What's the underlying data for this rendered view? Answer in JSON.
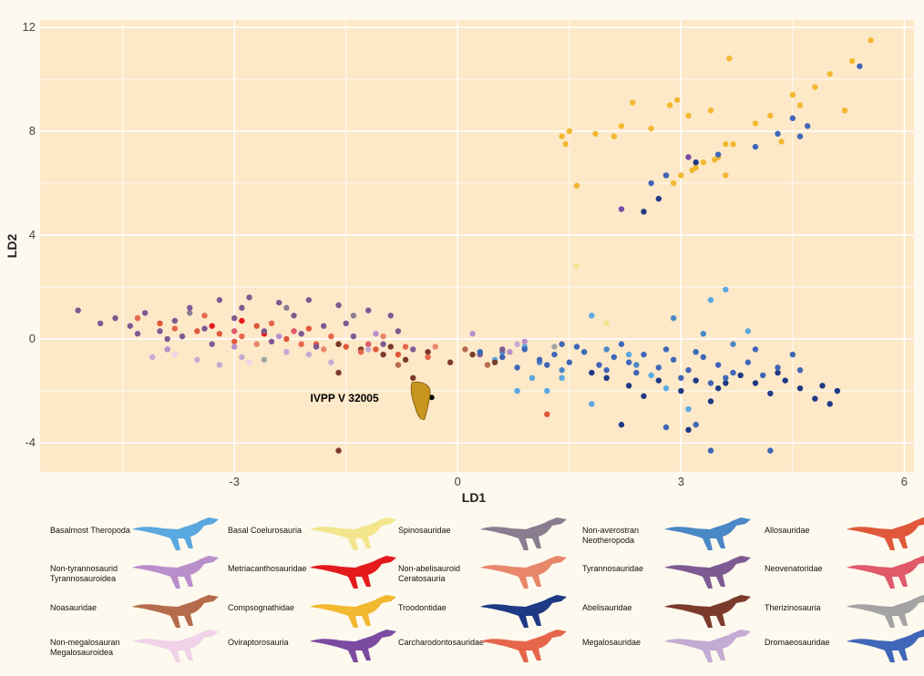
{
  "chart_data": {
    "type": "scatter",
    "x_label": "LD1",
    "y_label": "LD2",
    "xlim": [
      -5.61,
      6.13
    ],
    "ylim": [
      -5.12,
      12.28
    ],
    "xticks": [
      -3,
      0,
      3,
      6
    ],
    "yticks": [
      -4,
      0,
      4,
      8,
      12
    ],
    "x_minor_grid": [
      -4.5,
      -1.5,
      1.5,
      4.5
    ],
    "y_minor_grid": [
      -2,
      2,
      6,
      10
    ],
    "grid": true,
    "annotations": [
      {
        "text": "IVPP V 32005",
        "x": -0.35,
        "y": -2.25,
        "color": "#000000"
      }
    ],
    "series": [
      {
        "name": "Basalmost Theropoda",
        "color": "#5aa8e0",
        "x": [
          0.5,
          1.0,
          1.2,
          1.8,
          2.3,
          2.8,
          3.4,
          3.6,
          3.9,
          1.8,
          2.6,
          1.4,
          0.9,
          3.1,
          0.8
        ],
        "y": [
          -0.8,
          -1.5,
          -2.0,
          -2.5,
          -0.6,
          -1.9,
          1.5,
          1.9,
          0.3,
          0.9,
          -1.4,
          -1.5,
          -0.3,
          -2.7,
          -2.0
        ]
      },
      {
        "name": "Basal Coelurosauria",
        "color": "#f2e58c",
        "x": [
          1.6,
          2.0
        ],
        "y": [
          2.8,
          0.6
        ]
      },
      {
        "name": "Spinosauridae",
        "color": "#8b7d90",
        "x": [
          -3.6,
          -2.3,
          -1.4
        ],
        "y": [
          1.0,
          1.2,
          0.9
        ]
      },
      {
        "name": "Non-averostran\nNeotheropoda",
        "color": "#4a88c6",
        "x": [
          0.6,
          1.4,
          2.0,
          2.9,
          3.3,
          3.7,
          1.1,
          2.4
        ],
        "y": [
          -0.5,
          -1.2,
          -0.4,
          0.8,
          0.2,
          -0.2,
          -0.9,
          -1.0
        ]
      },
      {
        "name": "Allosauridae",
        "color": "#e0583a",
        "x": [
          -4.0,
          -3.5,
          -3.0,
          -2.7,
          -2.3,
          -1.9,
          -1.5,
          -1.1,
          -0.8,
          -3.2,
          -2.0,
          1.2
        ],
        "y": [
          0.6,
          0.3,
          -0.1,
          0.5,
          0.0,
          -0.2,
          -0.3,
          -0.4,
          -0.6,
          0.2,
          0.4,
          -2.9
        ]
      },
      {
        "name": "Non-tyrannosaurid\nTyrannosauroidea",
        "color": "#b98fcb",
        "x": [
          -3.9,
          -3.0,
          -2.4,
          0.2,
          0.9,
          -1.1,
          0.7
        ],
        "y": [
          -0.4,
          -0.3,
          0.1,
          0.2,
          -0.1,
          0.2,
          -0.5
        ]
      },
      {
        "name": "Metriacanthosauridae",
        "color": "#e41a1c",
        "x": [
          -3.3,
          -2.6,
          -1.6,
          -2.9
        ],
        "y": [
          0.5,
          0.2,
          -0.2,
          0.7
        ]
      },
      {
        "name": "Non-abelisauroid\nCeratosauria",
        "color": "#e8866a",
        "x": [
          -2.7,
          -1.8,
          -1.0,
          -0.3
        ],
        "y": [
          -0.2,
          -0.4,
          0.1,
          -0.3
        ]
      },
      {
        "name": "Tyrannosauridae",
        "color": "#7e5a92",
        "x": [
          -5.1,
          -4.8,
          -4.6,
          -4.4,
          -4.2,
          -4.0,
          -3.8,
          -3.6,
          -3.4,
          -3.2,
          -3.0,
          -2.8,
          -2.6,
          -2.4,
          -2.2,
          -2.0,
          -1.8,
          -1.6,
          -1.4,
          -1.2,
          -1.0,
          -0.8,
          -0.6,
          -3.9,
          -3.3,
          -2.5,
          -1.9,
          -4.3,
          -2.9,
          -1.5,
          -0.9,
          -3.7,
          -2.1,
          0.3,
          0.6
        ],
        "y": [
          1.1,
          0.6,
          0.8,
          0.5,
          1.0,
          0.3,
          0.7,
          1.2,
          0.4,
          1.5,
          0.8,
          1.6,
          0.3,
          1.4,
          0.9,
          1.5,
          0.5,
          1.3,
          0.1,
          1.1,
          -0.2,
          0.3,
          -0.4,
          0.0,
          -0.2,
          -0.1,
          -0.3,
          0.2,
          1.2,
          0.6,
          0.9,
          0.1,
          0.2,
          -0.6,
          -0.4
        ]
      },
      {
        "name": "Neovenatoridae",
        "color": "#e05a6a",
        "x": [
          -3.0,
          -2.2,
          -1.2
        ],
        "y": [
          0.3,
          0.3,
          -0.2
        ]
      },
      {
        "name": "Noasauridae",
        "color": "#b56c4c",
        "x": [
          -0.8,
          0.1,
          0.4
        ],
        "y": [
          -1.0,
          -0.4,
          -1.0
        ]
      },
      {
        "name": "Compsognathidae",
        "color": "#f2b830",
        "x": [
          1.4,
          1.5,
          1.45,
          1.6,
          1.85,
          2.1,
          2.2,
          2.35,
          2.6,
          2.85,
          2.95,
          3.1,
          3.4,
          3.65,
          3.5,
          3.2,
          3.0,
          3.6,
          3.7,
          3.3,
          3.6,
          4.0,
          4.2,
          4.5,
          4.6,
          4.8,
          5.0,
          5.3,
          5.55,
          5.2,
          4.35,
          3.45,
          3.15,
          2.9
        ],
        "y": [
          7.8,
          8.0,
          7.5,
          5.9,
          7.9,
          7.8,
          8.2,
          9.1,
          8.1,
          9.0,
          9.2,
          8.6,
          8.8,
          10.8,
          7.0,
          6.6,
          6.3,
          7.5,
          7.5,
          6.8,
          6.3,
          8.3,
          8.6,
          9.4,
          9.0,
          9.7,
          10.2,
          10.7,
          11.5,
          8.8,
          7.6,
          6.9,
          6.5,
          6.0
        ]
      },
      {
        "name": "Troodontidae",
        "color": "#1e3a85",
        "x": [
          2.0,
          2.3,
          2.7,
          3.0,
          3.2,
          3.5,
          3.8,
          4.0,
          4.2,
          4.4,
          4.6,
          4.8,
          5.0,
          5.1,
          4.9,
          4.3,
          3.6,
          3.4,
          2.5,
          1.8,
          2.2,
          3.1,
          2.5,
          2.7,
          3.2
        ],
        "y": [
          -1.5,
          -1.8,
          -1.6,
          -2.0,
          -1.6,
          -1.9,
          -1.4,
          -1.7,
          -2.1,
          -1.6,
          -1.9,
          -2.3,
          -2.5,
          -2.0,
          -1.8,
          -1.3,
          -1.7,
          -2.4,
          -2.2,
          -1.3,
          -3.3,
          -3.5,
          4.9,
          5.4,
          6.8
        ]
      },
      {
        "name": "Abelisauridae",
        "color": "#7a3b2c",
        "x": [
          -1.6,
          -1.3,
          -1.0,
          -0.7,
          -0.4,
          -0.1,
          0.2,
          0.5,
          -1.6,
          -0.6,
          -1.6,
          -0.9
        ],
        "y": [
          -0.2,
          -0.4,
          -0.6,
          -0.8,
          -0.5,
          -0.9,
          -0.6,
          -0.9,
          -1.3,
          -1.5,
          -4.3,
          -0.3
        ]
      },
      {
        "name": "Therizinosauria",
        "color": "#a3a3a3",
        "x": [
          -2.6,
          1.3
        ],
        "y": [
          -0.8,
          -0.3
        ]
      },
      {
        "name": "Non-megalosauran\nMegalosauroidea",
        "color": "#f1d2e8",
        "x": [
          -3.8,
          -2.8
        ],
        "y": [
          -0.6,
          -0.9
        ]
      },
      {
        "name": "Oviraptorosauria",
        "color": "#7b4ba2",
        "x": [
          2.2,
          3.1,
          2.8
        ],
        "y": [
          5.0,
          7.0,
          6.3
        ]
      },
      {
        "name": "Carcharodontosauridae",
        "color": "#e6664c",
        "x": [
          -4.3,
          -3.8,
          -3.4,
          -2.9,
          -2.5,
          -2.1,
          -1.7,
          -1.3,
          -0.7,
          -0.4
        ],
        "y": [
          0.8,
          0.4,
          0.9,
          0.1,
          0.6,
          -0.2,
          0.1,
          -0.5,
          -0.3,
          -0.7
        ]
      },
      {
        "name": "Megalosauridae",
        "color": "#c3abd3",
        "x": [
          -4.1,
          -3.5,
          -2.9,
          -2.3,
          -1.7,
          -3.2,
          -2.0,
          0.8,
          0.6,
          -1.2
        ],
        "y": [
          -0.7,
          -0.8,
          -0.7,
          -0.5,
          -0.9,
          -1.0,
          -0.6,
          -0.2,
          -0.7,
          -0.4
        ]
      },
      {
        "name": "Dromaeosauridae",
        "color": "#3f66b8",
        "x": [
          0.3,
          0.6,
          0.9,
          1.1,
          1.3,
          1.5,
          1.7,
          1.9,
          2.1,
          2.3,
          2.5,
          2.7,
          2.9,
          3.1,
          3.3,
          3.5,
          3.7,
          3.9,
          4.1,
          4.3,
          4.5,
          1.2,
          1.6,
          2.0,
          2.4,
          2.8,
          3.2,
          3.6,
          4.0,
          1.4,
          0.8,
          2.2,
          3.0,
          3.4,
          4.6,
          2.6,
          2.8,
          3.5,
          4.0,
          4.3,
          4.5,
          4.7,
          5.4,
          4.6,
          3.4,
          4.2,
          2.8,
          3.2
        ],
        "y": [
          -0.5,
          -0.7,
          -0.4,
          -0.8,
          -0.6,
          -0.9,
          -0.5,
          -1.0,
          -0.7,
          -0.9,
          -0.6,
          -1.1,
          -0.8,
          -1.2,
          -0.7,
          -1.0,
          -1.3,
          -0.9,
          -1.4,
          -1.1,
          -0.6,
          -1.0,
          -0.3,
          -1.2,
          -1.3,
          -0.4,
          -0.5,
          -1.5,
          -0.4,
          -0.2,
          -1.1,
          -0.2,
          -1.5,
          -1.7,
          -1.2,
          6.0,
          6.3,
          7.1,
          7.4,
          7.9,
          8.5,
          8.2,
          10.5,
          7.8,
          -4.3,
          -4.3,
          -3.4,
          -3.3
        ]
      }
    ]
  }
}
